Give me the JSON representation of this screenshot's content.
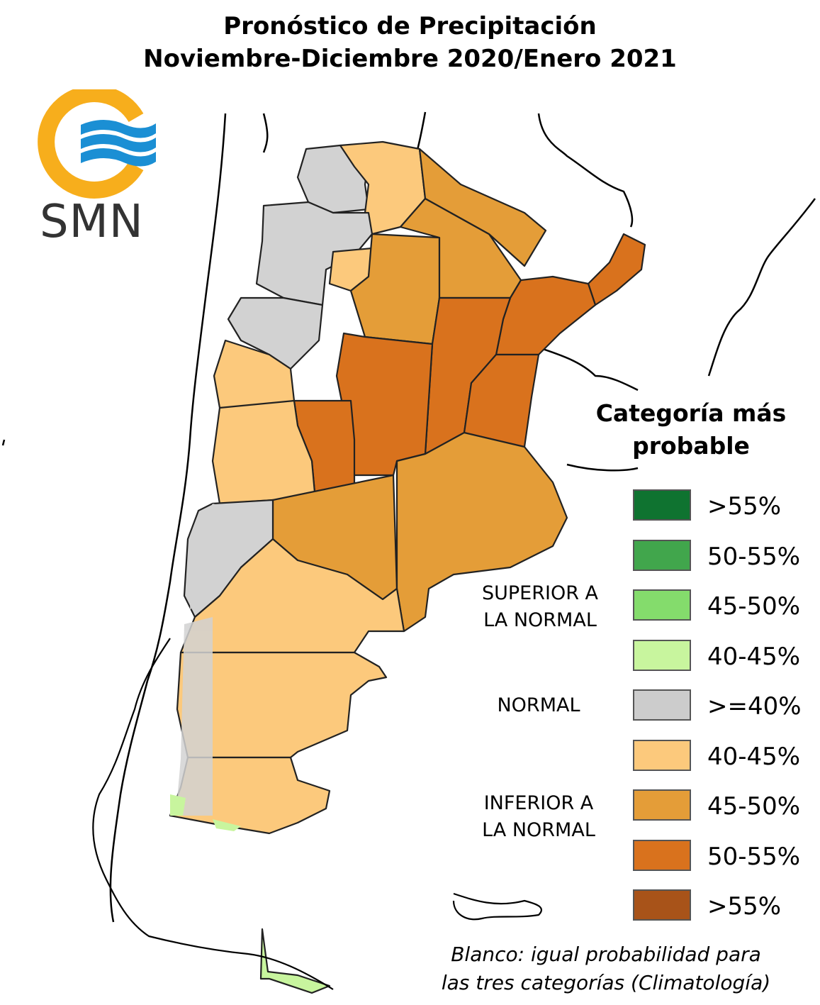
{
  "title": {
    "line1": "Pronóstico de Precipitación",
    "line2": "Noviembre-Diciembre 2020/Enero 2021"
  },
  "logo": {
    "text": "SMN",
    "ring_color": "#F7AE1C",
    "wave_color": "#1B8FD4"
  },
  "legend": {
    "title_line1": "Categoría más",
    "title_line2": "probable",
    "groups": {
      "superior_line1": "SUPERIOR A",
      "superior_line2": "LA NORMAL",
      "normal": "NORMAL",
      "inferior_line1": "INFERIOR A",
      "inferior_line2": "LA NORMAL"
    },
    "items": [
      {
        "label": ">55%",
        "color": "#0F7330"
      },
      {
        "label": "50-55%",
        "color": "#41A64C"
      },
      {
        "label": "45-50%",
        "color": "#84DC6C"
      },
      {
        "label": "40-45%",
        "color": "#C8F59E"
      },
      {
        "label": ">=40%",
        "color": "#CCCCCC"
      },
      {
        "label": "40-45%",
        "color": "#FCC97C"
      },
      {
        "label": "45-50%",
        "color": "#E49D38"
      },
      {
        "label": "50-55%",
        "color": "#D9721D"
      },
      {
        "label": ">55%",
        "color": "#A85319"
      }
    ]
  },
  "note": {
    "line1": "Blanco: igual probabilidad para",
    "line2": "las tres categorías (Climatología)"
  }
}
